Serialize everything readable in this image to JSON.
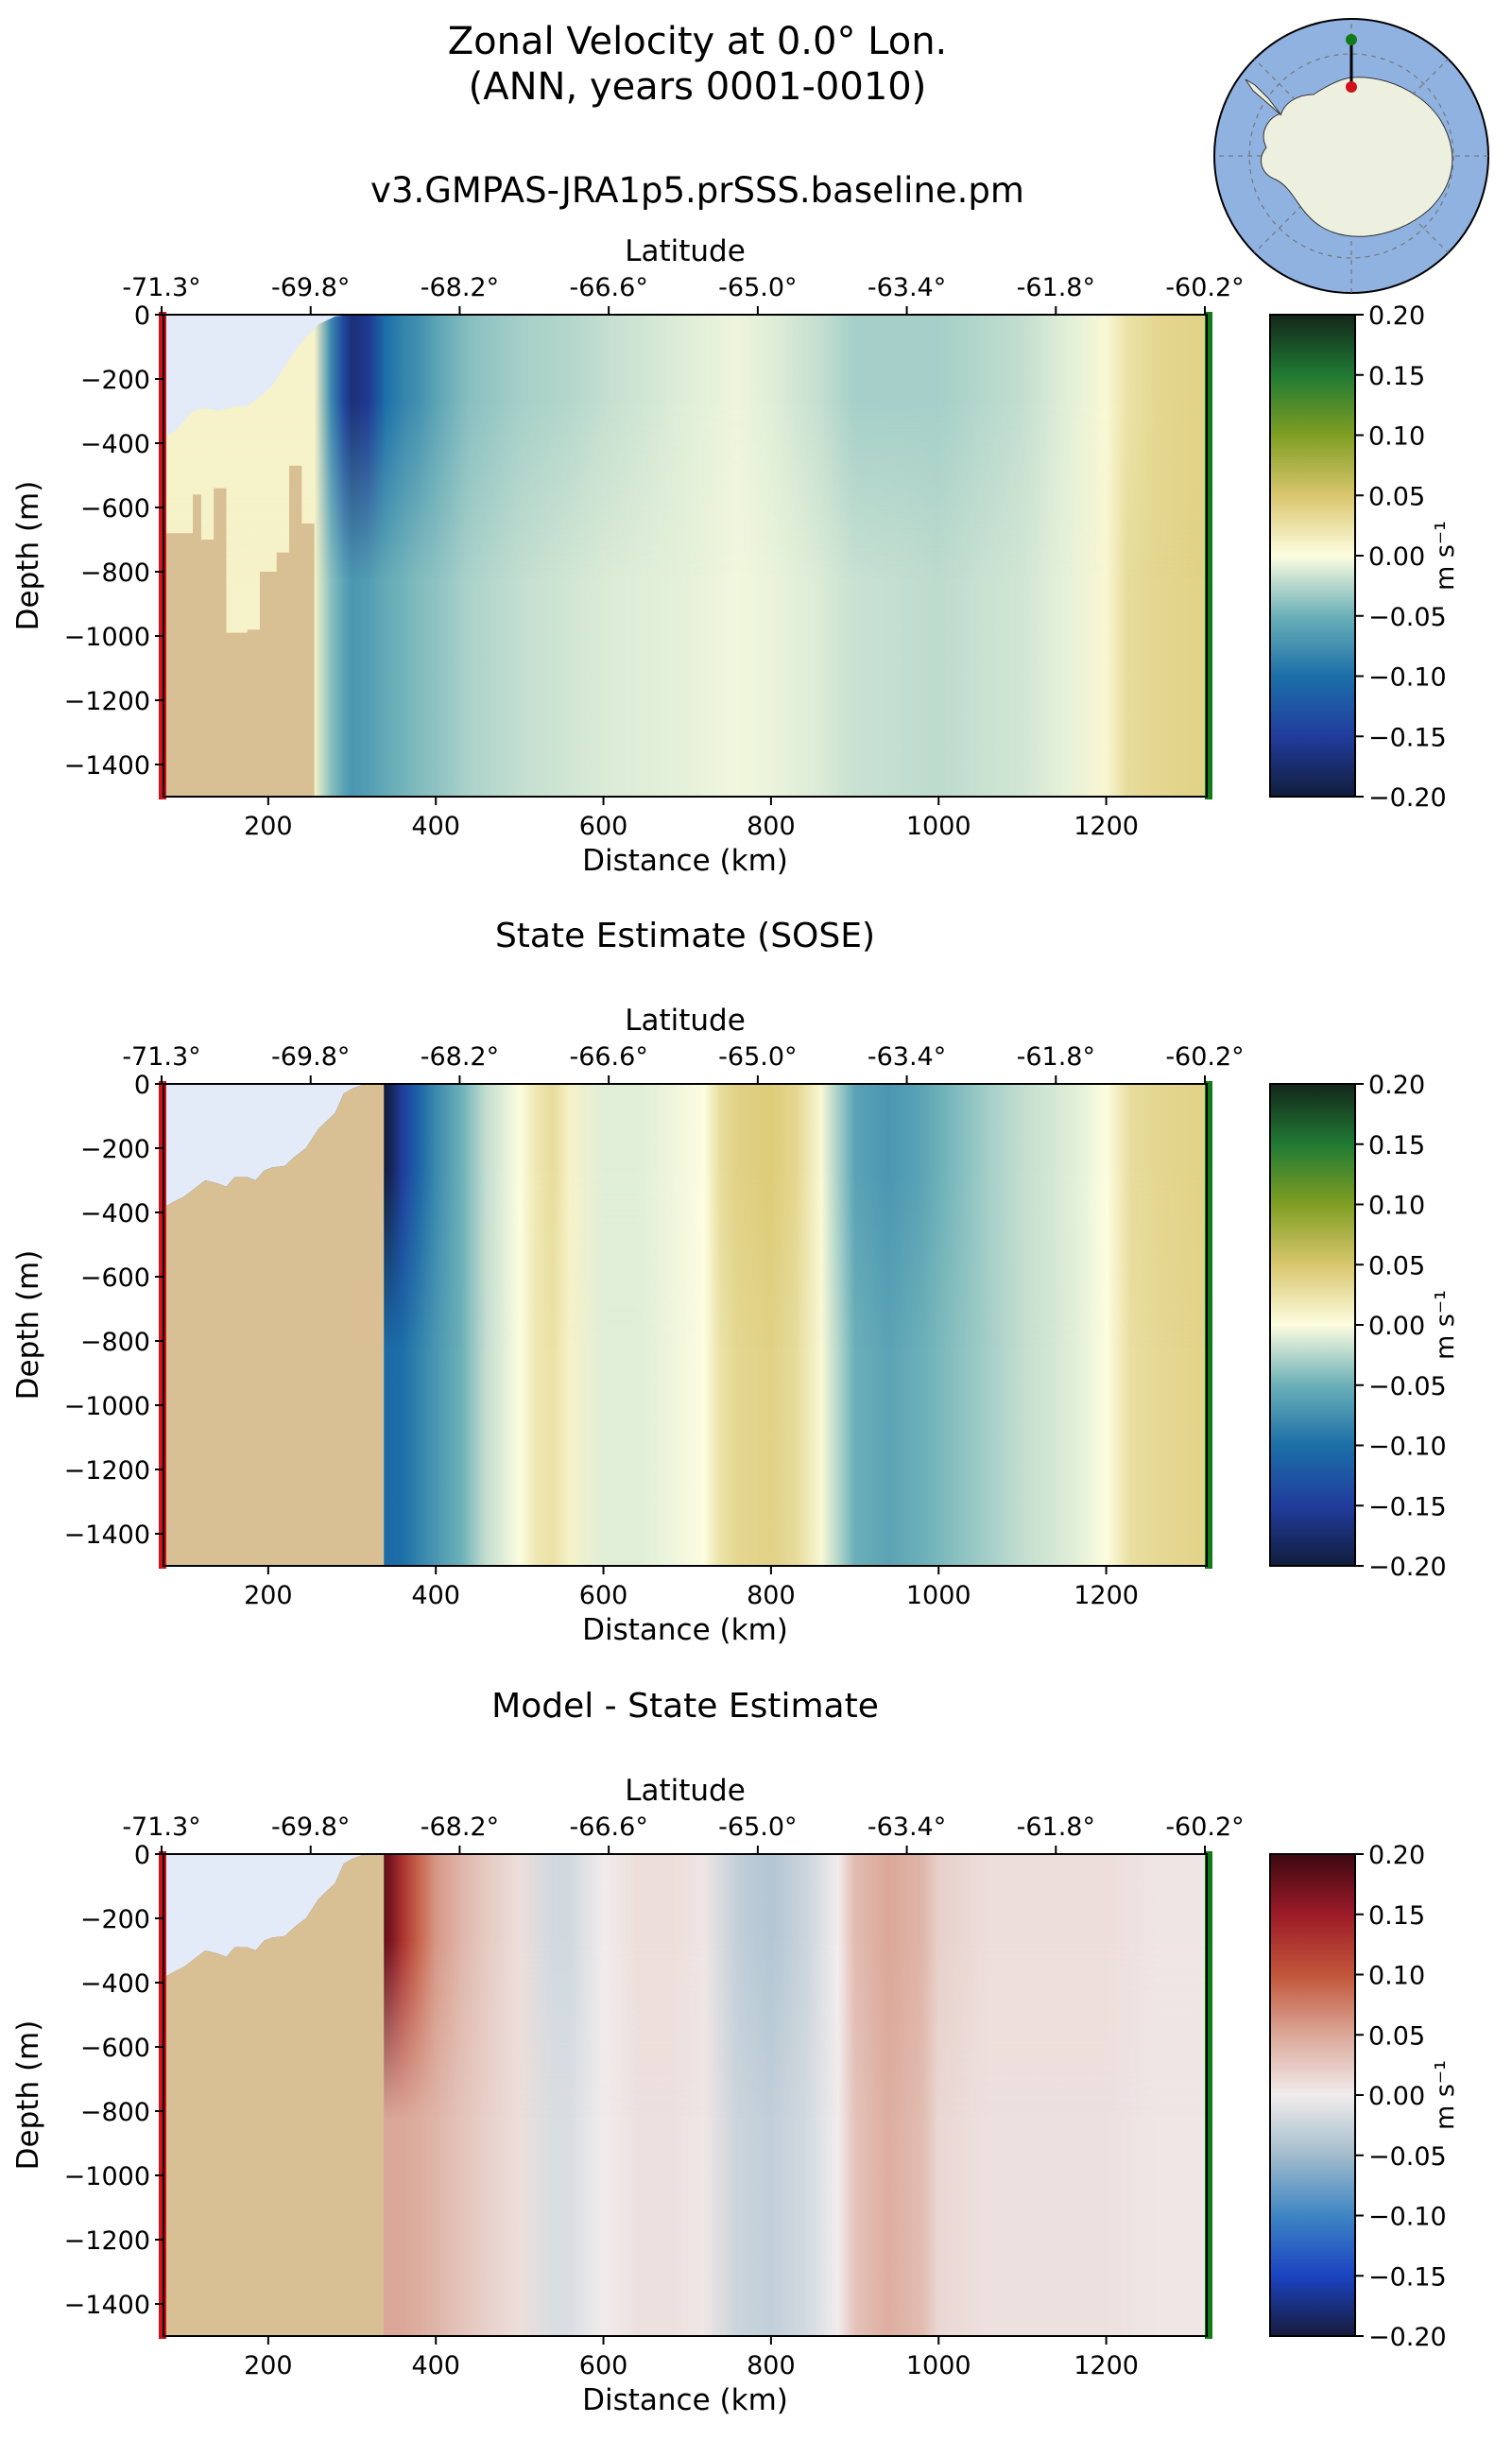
{
  "figure": {
    "title_line1": "Zonal Velocity at 0.0° Lon.",
    "title_line2": "(ANN, years 0001-0010)",
    "run_title": "v3.GMPAS-JRA1p5.prSSS.baseline.pm",
    "colors": {
      "land": "#d8bf94",
      "ice_shelf": "#e2ebf7",
      "transect_start_marker": "#d0121c",
      "transect_end_marker": "#137a1a",
      "map_ocean": "#8fb2e1",
      "map_land": "#eef0df"
    },
    "inset_map": {
      "icon": "south-polar-stereographic-map-icon"
    }
  },
  "chart_data": [
    {
      "type": "heatmap",
      "title": "",
      "xlabel": "Distance (km)",
      "ylabel": "Depth (m)",
      "top_axis_label": "Latitude",
      "xlim": [
        75,
        1320
      ],
      "ylim": [
        -1500,
        0
      ],
      "xticks": [
        200,
        400,
        600,
        800,
        1000,
        1200
      ],
      "yticks": [
        0,
        -200,
        -400,
        -600,
        -800,
        -1000,
        -1200,
        -1400
      ],
      "latitude_ticks": [
        "-71.3°",
        "-69.8°",
        "-68.2°",
        "-66.6°",
        "-65.0°",
        "-63.4°",
        "-61.8°",
        "-60.2°"
      ],
      "colorbar": {
        "label": "m s⁻¹",
        "min": -0.2,
        "max": 0.2,
        "ticks": [
          "0.20",
          "0.15",
          "0.10",
          "0.05",
          "0.00",
          "−0.05",
          "−0.10",
          "−0.15",
          "−0.20"
        ],
        "colormap": "delta"
      },
      "bathymetry_depth_m": [
        [
          75,
          -680
        ],
        [
          110,
          -680
        ],
        [
          110,
          -560
        ],
        [
          120,
          -560
        ],
        [
          120,
          -700
        ],
        [
          135,
          -700
        ],
        [
          135,
          -540
        ],
        [
          150,
          -540
        ],
        [
          150,
          -990
        ],
        [
          175,
          -990
        ],
        [
          175,
          -980
        ],
        [
          190,
          -980
        ],
        [
          190,
          -800
        ],
        [
          210,
          -800
        ],
        [
          210,
          -740
        ],
        [
          225,
          -740
        ],
        [
          225,
          -470
        ],
        [
          240,
          -470
        ],
        [
          240,
          -650
        ],
        [
          255,
          -650
        ],
        [
          255,
          -1500
        ]
      ],
      "ice_draft_m": [
        [
          75,
          -380
        ],
        [
          90,
          -360
        ],
        [
          110,
          -300
        ],
        [
          125,
          -290
        ],
        [
          140,
          -300
        ],
        [
          160,
          -285
        ],
        [
          175,
          -285
        ],
        [
          195,
          -245
        ],
        [
          205,
          -220
        ],
        [
          215,
          -180
        ],
        [
          230,
          -120
        ],
        [
          245,
          -70
        ],
        [
          260,
          -30
        ],
        [
          280,
          -5
        ],
        [
          300,
          0
        ]
      ],
      "velocity_profile": {
        "distance_km": [
          75,
          255,
          275,
          290,
          300,
          320,
          340,
          360,
          380,
          400,
          440,
          500,
          560,
          600,
          650,
          700,
          760,
          800,
          860,
          900,
          960,
          1000,
          1050,
          1100,
          1150,
          1200,
          1225,
          1260,
          1320
        ],
        "surface_ms": [
          0.01,
          0.01,
          -0.08,
          -0.14,
          -0.17,
          -0.155,
          -0.1,
          -0.085,
          -0.075,
          -0.06,
          -0.04,
          -0.03,
          -0.025,
          -0.02,
          -0.015,
          -0.01,
          -0.005,
          -0.01,
          -0.02,
          -0.03,
          -0.03,
          -0.03,
          -0.025,
          -0.02,
          -0.01,
          0.005,
          0.025,
          0.035,
          0.04
        ],
        "deep_ms": [
          0.01,
          0.01,
          -0.04,
          -0.06,
          -0.07,
          -0.065,
          -0.055,
          -0.048,
          -0.042,
          -0.038,
          -0.028,
          -0.02,
          -0.015,
          -0.012,
          -0.01,
          -0.008,
          -0.004,
          -0.006,
          -0.012,
          -0.018,
          -0.02,
          -0.022,
          -0.018,
          -0.015,
          -0.008,
          0.006,
          0.03,
          0.035,
          0.04
        ]
      }
    },
    {
      "type": "heatmap",
      "title": "State Estimate (SOSE)",
      "xlabel": "Distance (km)",
      "ylabel": "Depth (m)",
      "top_axis_label": "Latitude",
      "xlim": [
        75,
        1320
      ],
      "ylim": [
        -1500,
        0
      ],
      "xticks": [
        200,
        400,
        600,
        800,
        1000,
        1200
      ],
      "yticks": [
        0,
        -200,
        -400,
        -600,
        -800,
        -1000,
        -1200,
        -1400
      ],
      "latitude_ticks": [
        "-71.3°",
        "-69.8°",
        "-68.2°",
        "-66.6°",
        "-65.0°",
        "-63.4°",
        "-61.8°",
        "-60.2°"
      ],
      "colorbar": {
        "label": "m s⁻¹",
        "min": -0.2,
        "max": 0.2,
        "ticks": [
          "0.20",
          "0.15",
          "0.10",
          "0.05",
          "0.00",
          "−0.05",
          "−0.10",
          "−0.15",
          "−0.20"
        ],
        "colormap": "delta"
      },
      "bathymetry_depth_m": [
        [
          75,
          -385
        ],
        [
          85,
          -370
        ],
        [
          100,
          -350
        ],
        [
          115,
          -320
        ],
        [
          125,
          -300
        ],
        [
          140,
          -310
        ],
        [
          150,
          -320
        ],
        [
          160,
          -290
        ],
        [
          175,
          -290
        ],
        [
          185,
          -300
        ],
        [
          195,
          -270
        ],
        [
          205,
          -260
        ],
        [
          220,
          -255
        ],
        [
          230,
          -230
        ],
        [
          245,
          -200
        ],
        [
          260,
          -140
        ],
        [
          280,
          -90
        ],
        [
          290,
          -30
        ],
        [
          300,
          -15
        ],
        [
          310,
          -5
        ],
        [
          320,
          0
        ],
        [
          338,
          0
        ],
        [
          338,
          -1500
        ]
      ],
      "ice_draft_m": [],
      "velocity_profile": {
        "distance_km": [
          338,
          345,
          360,
          380,
          400,
          430,
          460,
          500,
          520,
          540,
          560,
          600,
          640,
          680,
          720,
          740,
          760,
          800,
          830,
          860,
          880,
          900,
          940,
          980,
          1000,
          1060,
          1100,
          1160,
          1200,
          1230,
          1260,
          1320
        ],
        "surface_ms": [
          -0.2,
          -0.19,
          -0.15,
          -0.11,
          -0.08,
          -0.05,
          -0.02,
          0.0,
          0.02,
          0.03,
          0.01,
          -0.01,
          -0.01,
          -0.005,
          0.0,
          0.03,
          0.04,
          0.045,
          0.035,
          0.005,
          -0.03,
          -0.06,
          -0.07,
          -0.06,
          -0.05,
          -0.03,
          -0.02,
          -0.01,
          0.0,
          0.03,
          0.035,
          0.04
        ],
        "deep_ms": [
          -0.1,
          -0.105,
          -0.1,
          -0.085,
          -0.07,
          -0.05,
          -0.02,
          0.0,
          0.02,
          0.025,
          0.01,
          -0.01,
          -0.01,
          -0.005,
          0.0,
          0.025,
          0.035,
          0.04,
          0.03,
          0.005,
          -0.025,
          -0.05,
          -0.06,
          -0.05,
          -0.045,
          -0.03,
          -0.02,
          -0.01,
          0.0,
          0.028,
          0.033,
          0.038
        ]
      }
    },
    {
      "type": "heatmap",
      "title": "Model - State Estimate",
      "xlabel": "Distance (km)",
      "ylabel": "Depth (m)",
      "top_axis_label": "Latitude",
      "xlim": [
        75,
        1320
      ],
      "ylim": [
        -1500,
        0
      ],
      "xticks": [
        200,
        400,
        600,
        800,
        1000,
        1200
      ],
      "yticks": [
        0,
        -200,
        -400,
        -600,
        -800,
        -1000,
        -1200,
        -1400
      ],
      "latitude_ticks": [
        "-71.3°",
        "-69.8°",
        "-68.2°",
        "-66.6°",
        "-65.0°",
        "-63.4°",
        "-61.8°",
        "-60.2°"
      ],
      "colorbar": {
        "label": "m s⁻¹",
        "min": -0.2,
        "max": 0.2,
        "ticks": [
          "0.20",
          "0.15",
          "0.10",
          "0.05",
          "0.00",
          "−0.05",
          "−0.10",
          "−0.15",
          "−0.20"
        ],
        "colormap": "balance"
      },
      "bathymetry_depth_m": [
        [
          75,
          -385
        ],
        [
          85,
          -370
        ],
        [
          100,
          -350
        ],
        [
          115,
          -320
        ],
        [
          125,
          -300
        ],
        [
          140,
          -310
        ],
        [
          150,
          -320
        ],
        [
          160,
          -290
        ],
        [
          175,
          -290
        ],
        [
          185,
          -300
        ],
        [
          195,
          -270
        ],
        [
          205,
          -260
        ],
        [
          220,
          -255
        ],
        [
          230,
          -230
        ],
        [
          245,
          -200
        ],
        [
          260,
          -140
        ],
        [
          280,
          -90
        ],
        [
          290,
          -30
        ],
        [
          300,
          -15
        ],
        [
          310,
          -5
        ],
        [
          320,
          0
        ],
        [
          338,
          0
        ],
        [
          338,
          -1500
        ]
      ],
      "ice_draft_m": [],
      "velocity_profile": {
        "distance_km": [
          338,
          345,
          360,
          380,
          400,
          430,
          460,
          500,
          540,
          560,
          600,
          640,
          680,
          720,
          760,
          800,
          840,
          880,
          900,
          940,
          980,
          1000,
          1060,
          1100,
          1160,
          1200,
          1260,
          1320
        ],
        "surface_ms": [
          0.18,
          0.17,
          0.13,
          0.09,
          0.06,
          0.04,
          0.025,
          0.01,
          -0.02,
          -0.02,
          0.0,
          0.01,
          0.01,
          0.005,
          -0.03,
          -0.04,
          -0.025,
          0.0,
          0.035,
          0.05,
          0.04,
          0.02,
          0.01,
          0.01,
          0.01,
          0.01,
          0.005,
          0.005
        ],
        "deep_ms": [
          0.05,
          0.05,
          0.05,
          0.045,
          0.04,
          0.03,
          0.02,
          0.01,
          -0.015,
          -0.015,
          0.0,
          0.008,
          0.008,
          0.004,
          -0.025,
          -0.03,
          -0.02,
          0.0,
          0.03,
          0.045,
          0.035,
          0.015,
          0.008,
          0.008,
          0.008,
          0.008,
          0.004,
          0.004
        ]
      }
    }
  ]
}
